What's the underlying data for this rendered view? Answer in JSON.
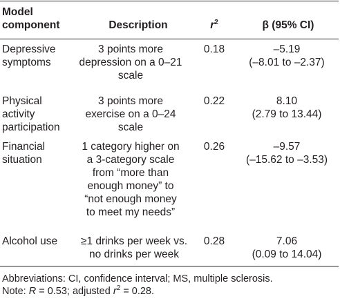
{
  "table": {
    "headers": {
      "component_line1": "Model",
      "component_line2": "component",
      "description": "Description",
      "r2_symbol": "r",
      "r2_sup": "2",
      "beta": "β (95% CI)"
    },
    "rows": [
      {
        "component": [
          "Depressive",
          "symptoms"
        ],
        "description": [
          "3 points more",
          "depression on a 0–21",
          "scale"
        ],
        "r2": "0.18",
        "beta": "–5.19",
        "ci": "(–8.01 to –2.37)"
      },
      {
        "component": [
          "Physical",
          "activity",
          "participation"
        ],
        "description": [
          "3 points more",
          "exercise on a 0–24",
          "scale"
        ],
        "r2": "0.22",
        "beta": "8.10",
        "ci": "(2.79 to 13.44)"
      },
      {
        "component": [
          "Financial",
          "situation"
        ],
        "description": [
          "1 category higher on",
          "a 3-category scale",
          "from “more than",
          "enough money” to",
          "“not enough money",
          "to meet my needs”"
        ],
        "r2": "0.26",
        "beta": "–9.57",
        "ci": "(–15.62 to –3.53)"
      },
      {
        "component": [
          "Alcohol use"
        ],
        "description": [
          "≥1 drinks per week vs.",
          "no drinks per week"
        ],
        "r2": "0.28",
        "beta": "7.06",
        "ci": "(0.09 to 14.04)"
      }
    ]
  },
  "footnote": {
    "abbreviations": "Abbreviations: CI, confidence interval; MS, multiple sclerosis.",
    "note_prefix": "Note: ",
    "note_R": "R",
    "note_R_value": " = 0.53; adjusted ",
    "note_r": "r",
    "note_sup": "2",
    "note_r_value": " = 0.28."
  }
}
